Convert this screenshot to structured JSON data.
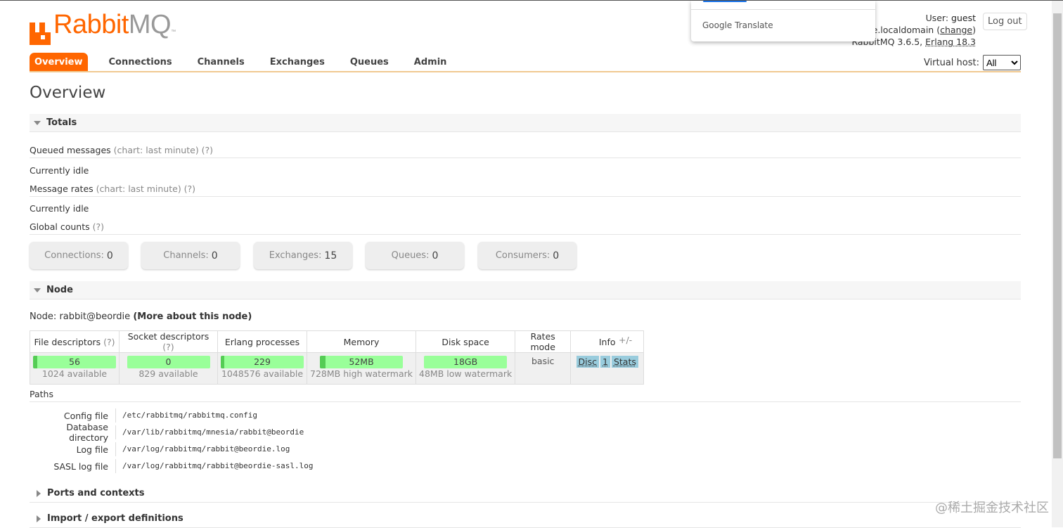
{
  "logo": {
    "text_rabbit": "Rabbit",
    "text_mq": "MQ",
    "tm": "™",
    "brand_color": "#ff6600"
  },
  "nav": {
    "tabs": [
      {
        "label": "Overview",
        "active": true
      },
      {
        "label": "Connections"
      },
      {
        "label": "Channels"
      },
      {
        "label": "Exchanges"
      },
      {
        "label": "Queues"
      },
      {
        "label": "Admin"
      }
    ]
  },
  "user": {
    "label": "User:",
    "name": "guest",
    "cluster": "e.localdomain",
    "change": "change",
    "version": "RabbitMQ 3.6.5,",
    "erlang": "Erlang 18.3",
    "logout": "Log out"
  },
  "vhost": {
    "label": "Virtual host:",
    "selected": "All"
  },
  "translate_popup": {
    "label": "Google Translate"
  },
  "page_title": "Overview",
  "totals": {
    "title": "Totals",
    "queued_label": "Queued messages",
    "queued_hint": "(chart: last minute) (?)",
    "queued_status": "Currently idle",
    "rates_label": "Message rates",
    "rates_hint": "(chart: last minute) (?)",
    "rates_status": "Currently idle",
    "global_label": "Global counts",
    "global_hint": "(?)",
    "counts": [
      {
        "label": "Connections:",
        "value": "0"
      },
      {
        "label": "Channels:",
        "value": "0"
      },
      {
        "label": "Exchanges:",
        "value": "15"
      },
      {
        "label": "Queues:",
        "value": "0"
      },
      {
        "label": "Consumers:",
        "value": "0"
      }
    ]
  },
  "node": {
    "title": "Node",
    "node_label": "Node:",
    "node_name": "rabbit@beordie",
    "more": "(More about this node)",
    "headers": {
      "fd": "File descriptors",
      "fd_hint": "(?)",
      "sd": "Socket descriptors",
      "sd_hint": "(?)",
      "ep": "Erlang processes",
      "mem": "Memory",
      "disk": "Disk space",
      "rates": "Rates mode",
      "info": "Info",
      "toggle": "+/-"
    },
    "fd": {
      "value": "56",
      "sub": "1024 available",
      "fraction": 0.055
    },
    "sd": {
      "value": "0",
      "sub": "829 available",
      "fraction": 0
    },
    "ep": {
      "value": "229",
      "sub": "1048576 available",
      "fraction": 0.0002
    },
    "mem": {
      "value": "52MB",
      "sub": "728MB high watermark",
      "fraction": 0.071
    },
    "disk": {
      "value": "18GB",
      "sub": "48MB low watermark",
      "fraction": 0
    },
    "rates": "basic",
    "info": [
      "Disc",
      "1",
      "Stats"
    ]
  },
  "paths": {
    "title": "Paths",
    "rows": [
      {
        "k": "Config file",
        "v": "/etc/rabbitmq/rabbitmq.config"
      },
      {
        "k": "Database directory",
        "v": "/var/lib/rabbitmq/mnesia/rabbit@beordie"
      },
      {
        "k": "Log file",
        "v": "/var/log/rabbitmq/rabbit@beordie.log"
      },
      {
        "k": "SASL log file",
        "v": "/var/log/rabbitmq/rabbit@beordie-sasl.log"
      }
    ]
  },
  "ports": {
    "title": "Ports and contexts"
  },
  "import": {
    "title": "Import / export definitions"
  },
  "watermark": "@稀土掘金技术社区"
}
